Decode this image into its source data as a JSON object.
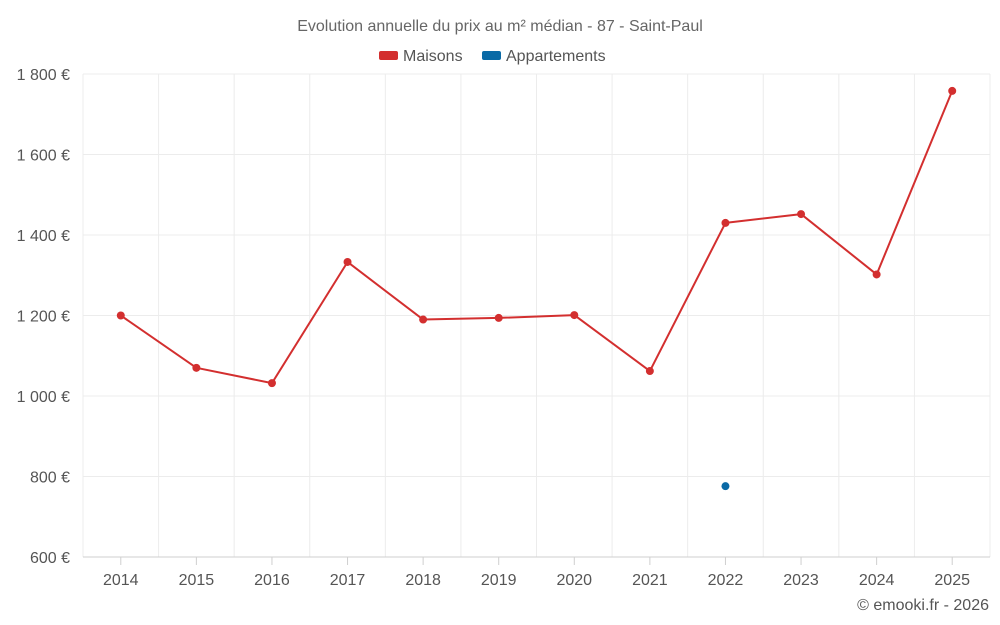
{
  "chart_data": {
    "type": "line",
    "title": "Evolution annuelle du prix au m² médian - 87 - Saint-Paul",
    "xlabel": "",
    "ylabel": "",
    "categories": [
      "2014",
      "2015",
      "2016",
      "2017",
      "2018",
      "2019",
      "2020",
      "2021",
      "2022",
      "2023",
      "2024",
      "2025"
    ],
    "y_ticks": [
      600,
      800,
      1000,
      1200,
      1400,
      1600,
      1800
    ],
    "y_tick_labels": [
      "600 €",
      "800 €",
      "1 000 €",
      "1 200 €",
      "1 400 €",
      "1 600 €",
      "1 800 €"
    ],
    "ylim": [
      600,
      1800
    ],
    "grid": true,
    "legend_position": "top-center",
    "series": [
      {
        "name": "Maisons",
        "color": "#d32f2f",
        "values": [
          1200,
          1070,
          1032,
          1333,
          1190,
          1194,
          1201,
          1062,
          1430,
          1452,
          1302,
          1758
        ]
      },
      {
        "name": "Appartements",
        "color": "#0a6aa6",
        "values": [
          null,
          null,
          null,
          null,
          null,
          null,
          null,
          null,
          776,
          null,
          null,
          null
        ]
      }
    ]
  },
  "credit": "© emooki.fr - 2026"
}
